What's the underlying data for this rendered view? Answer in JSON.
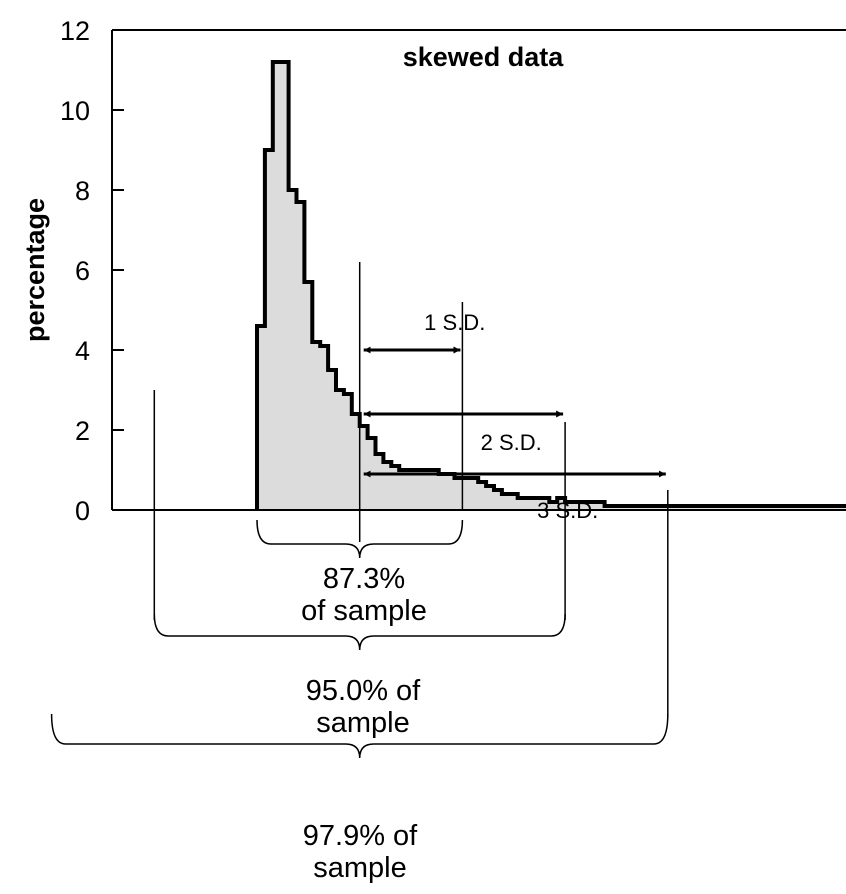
{
  "chart_data": {
    "type": "bar",
    "title": "skewed data",
    "ylabel": "percentage",
    "xlabel": "",
    "ylim": [
      0,
      12
    ],
    "yticks": [
      0,
      2,
      4,
      6,
      8,
      10,
      12
    ],
    "x_start": 0,
    "bin_width": 1,
    "values": [
      4.6,
      9.0,
      11.2,
      11.2,
      8.0,
      7.7,
      5.7,
      4.2,
      4.1,
      3.5,
      3.0,
      2.9,
      2.4,
      2.1,
      1.8,
      1.4,
      1.2,
      1.1,
      1.0,
      1.0,
      1.0,
      1.0,
      1.0,
      0.9,
      0.9,
      0.8,
      0.8,
      0.8,
      0.7,
      0.6,
      0.5,
      0.4,
      0.4,
      0.3,
      0.3,
      0.3,
      0.3,
      0.2,
      0.3,
      0.2,
      0.2,
      0.2,
      0.2,
      0.2,
      0.1,
      0.1,
      0.1,
      0.1,
      0.1,
      0.1,
      0.1,
      0.1,
      0.1,
      0.1,
      0.1,
      0.1,
      0.1,
      0.1,
      0.1,
      0.1,
      0.1,
      0.1,
      0.1,
      0.1,
      0.1,
      0.1,
      0.1,
      0.1,
      0.1,
      0.1,
      0.1,
      0.1,
      0.1,
      0.1,
      0.1
    ],
    "mean_x": 13,
    "sd_x": 13,
    "sd_labels": [
      "1 S.D.",
      "2 S.D.",
      "3 S.D."
    ],
    "sd_marker_heights": [
      6.2,
      3.2,
      1.5
    ],
    "sd_arrow_heights": [
      4.0,
      2.4,
      0.9
    ],
    "coverage_labels": [
      [
        "87.3%",
        "of sample"
      ],
      [
        "95.0% of",
        "sample"
      ],
      [
        "97.9% of",
        "sample"
      ]
    ],
    "colors": {
      "fill": "#dcdcdc",
      "stroke": "#000000"
    }
  }
}
